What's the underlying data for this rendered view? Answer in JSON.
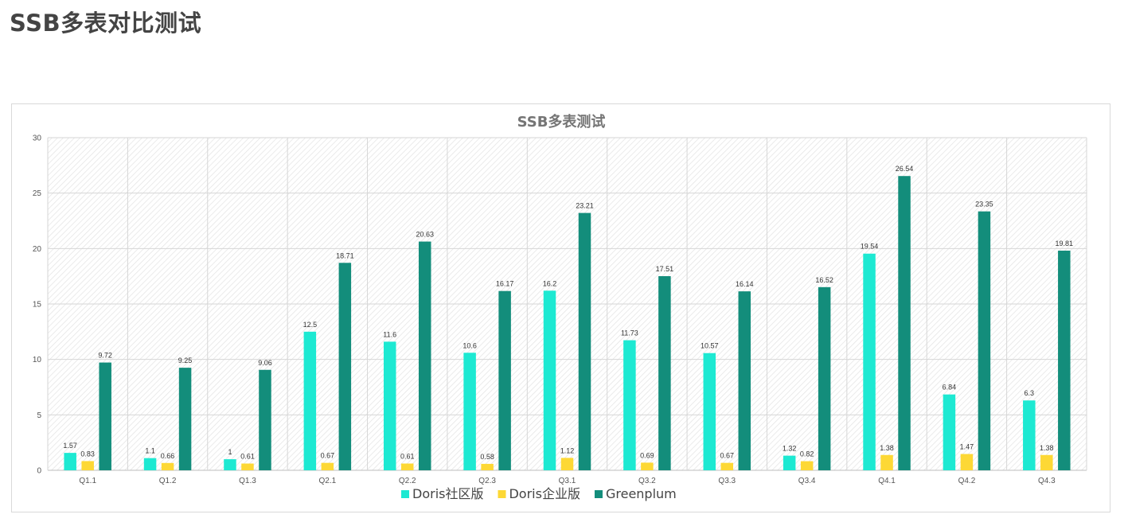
{
  "page": {
    "title": "SSB多表对比测试"
  },
  "chart_data": {
    "type": "bar",
    "title": "SSB多表测试",
    "xlabel": "",
    "ylabel": "",
    "ylim": [
      0,
      30
    ],
    "yticks": [
      0,
      5,
      10,
      15,
      20,
      25,
      30
    ],
    "grid": true,
    "legend_position": "bottom",
    "categories": [
      "Q1.1",
      "Q1.2",
      "Q1.3",
      "Q2.1",
      "Q2.2",
      "Q2.3",
      "Q3.1",
      "Q3.2",
      "Q3.3",
      "Q3.4",
      "Q4.1",
      "Q4.2",
      "Q4.3"
    ],
    "series": [
      {
        "name": "Doris社区版",
        "color": "#1de9d2",
        "values": [
          1.57,
          1.1,
          1,
          12.5,
          11.6,
          10.6,
          16.2,
          11.73,
          10.57,
          1.32,
          19.54,
          6.84,
          6.3
        ]
      },
      {
        "name": "Doris企业版",
        "color": "#fdd835",
        "values": [
          0.83,
          0.66,
          0.61,
          0.67,
          0.61,
          0.58,
          1.12,
          0.69,
          0.67,
          0.82,
          1.38,
          1.47,
          1.38
        ]
      },
      {
        "name": "Greenplum",
        "color": "#138d7b",
        "values": [
          9.72,
          9.25,
          9.06,
          18.71,
          20.63,
          16.17,
          23.21,
          17.51,
          16.14,
          16.52,
          26.54,
          23.35,
          19.81
        ]
      }
    ]
  }
}
